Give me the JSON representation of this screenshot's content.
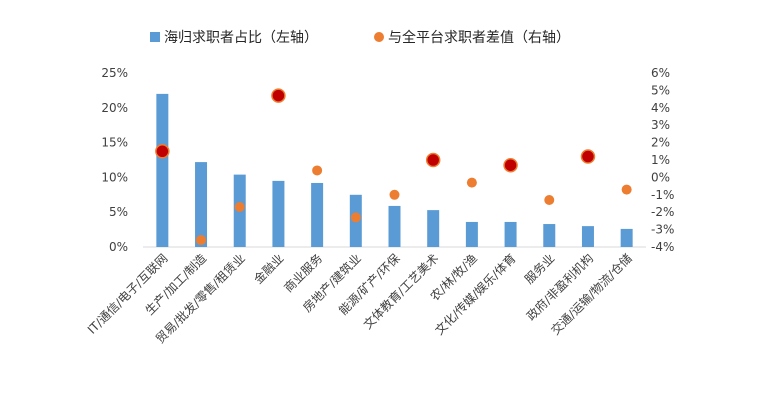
{
  "chart_data": {
    "type": "bar",
    "categories": [
      "IT/通信/电子/互联网",
      "生产/加工/制造",
      "贸易/批发/零售/租赁业",
      "金融业",
      "商业服务",
      "房地产/建筑业",
      "能源/矿产/环保",
      "文体教育/工艺美术",
      "农/林/牧/渔",
      "文化/传媒/娱乐/体育",
      "服务业",
      "政府/非盈利机构",
      "交通/运输/物流/仓储"
    ],
    "series": [
      {
        "name": "海归求职者占比（左轴）",
        "type": "bar",
        "axis": "left",
        "color": "#5B9BD5",
        "values": [
          22.0,
          12.2,
          10.4,
          9.5,
          9.2,
          7.5,
          5.9,
          5.3,
          3.6,
          3.6,
          3.3,
          3.0,
          2.6
        ]
      },
      {
        "name": "与全平台求职者差值（右轴）",
        "type": "scatter",
        "axis": "right",
        "color": "#ED7D31",
        "highlight_color": "#C00000",
        "values": [
          1.5,
          -3.6,
          -1.7,
          4.7,
          0.4,
          -2.3,
          -1.0,
          1.0,
          -0.3,
          0.7,
          -1.3,
          1.2,
          -0.7
        ],
        "highlighted": [
          true,
          false,
          false,
          true,
          false,
          false,
          false,
          true,
          false,
          true,
          false,
          true,
          false
        ]
      }
    ],
    "y_left": {
      "min": 0,
      "max": 25,
      "step": 5,
      "ticks": [
        "0%",
        "5%",
        "10%",
        "15%",
        "20%",
        "25%"
      ]
    },
    "y_right": {
      "min": -4,
      "max": 6,
      "step": 1,
      "ticks": [
        "-4%",
        "-3%",
        "-2%",
        "-1%",
        "0%",
        "1%",
        "2%",
        "3%",
        "4%",
        "5%",
        "6%"
      ]
    },
    "grid": false,
    "legend_position": "top"
  }
}
